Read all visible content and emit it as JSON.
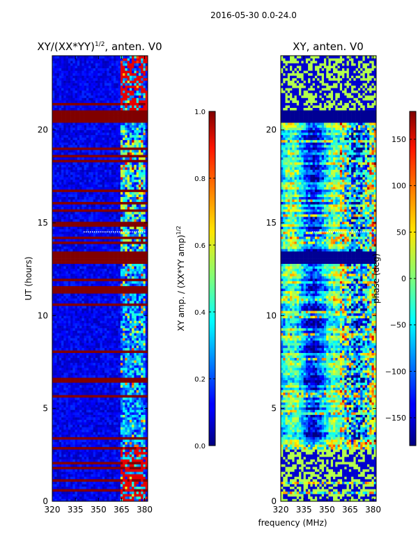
{
  "figure": {
    "suptitle": "2016-05-30 0.0-24.0",
    "shared_xlabel": "frequency (MHz)"
  },
  "chart_data": [
    {
      "type": "heatmap",
      "title": "XY/(XX*YY)^{1/2}, anten. V0",
      "title_main": "XY/(XX*YY)",
      "title_sup": "1/2",
      "title_tail": ", anten. V0",
      "ylabel": "UT (hours)",
      "xlim": [
        320,
        382
      ],
      "ylim": [
        0,
        24
      ],
      "xticks": [
        320,
        335,
        350,
        365,
        380
      ],
      "xtick_labels": [
        "320",
        "335",
        "350",
        "365",
        "380"
      ],
      "yticks": [
        0,
        5,
        10,
        15,
        20
      ],
      "ytick_labels": [
        "0",
        "5",
        "10",
        "15",
        "20"
      ],
      "colormap": "jet",
      "colorbar": {
        "label": "XY amp. / (XX*YY amp)^{1/2}",
        "label_main": "XY amp. / (XX*YY amp)",
        "label_sup": "1/2",
        "range": [
          0.0,
          1.0
        ],
        "ticks": [
          0.0,
          0.2,
          0.4,
          0.6,
          0.8,
          1.0
        ],
        "tick_labels": [
          "0.0",
          "0.2",
          "0.4",
          "0.6",
          "0.8",
          "1.0"
        ]
      },
      "features": {
        "saturated_bands_ut": [
          [
            20.4,
            21.0
          ],
          [
            12.8,
            13.4
          ],
          [
            11.2,
            11.6
          ],
          [
            6.4,
            6.6
          ],
          [
            5.6,
            5.7
          ]
        ],
        "high_band_mhz": [
          364,
          380
        ],
        "flagged_line_ut": 14.5
      }
    },
    {
      "type": "heatmap",
      "title": "XY, anten. V0",
      "xlim": [
        320,
        382
      ],
      "ylim": [
        0,
        24
      ],
      "xticks": [
        320,
        335,
        350,
        365,
        380
      ],
      "xtick_labels": [
        "320",
        "335",
        "350",
        "365",
        "380"
      ],
      "yticks": [
        0,
        5,
        10,
        15,
        20
      ],
      "ytick_labels": [
        "0",
        "5",
        "10",
        "15",
        "20"
      ],
      "colormap": "jet",
      "colorbar": {
        "label": "phase (deg)",
        "range": [
          -180,
          180
        ],
        "ticks": [
          -150,
          -100,
          -50,
          0,
          50,
          100,
          150
        ],
        "tick_labels": [
          "−150",
          "−100",
          "−50",
          "0",
          "50",
          "100",
          "150"
        ]
      },
      "features": {
        "dark_bands_ut": [
          [
            20.4,
            21.0
          ],
          [
            12.8,
            13.4
          ]
        ],
        "flagged_line_ut": 14.5
      }
    }
  ]
}
